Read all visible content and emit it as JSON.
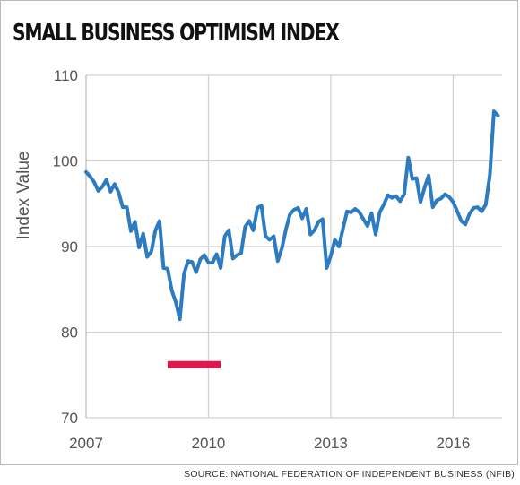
{
  "title": "SMALL BUSINESS OPTIMISM INDEX",
  "source": "SOURCE: NATIONAL FEDERATION OF INDEPENDENT BUSINESS (NFIB)",
  "colors": {
    "line": "#2d7bc0",
    "recession": "#e2174f",
    "grid": "#d2d2d2",
    "axis_text": "#555555"
  },
  "chart_data": {
    "type": "line",
    "title": "SMALL BUSINESS OPTIMISM INDEX",
    "xlabel": "",
    "ylabel": "Index Value",
    "xlim": [
      2007,
      2017.2
    ],
    "ylim": [
      70,
      110
    ],
    "x_ticks": [
      2007,
      2010,
      2013,
      2016
    ],
    "y_ticks": [
      70,
      80,
      90,
      100,
      110
    ],
    "grid": true,
    "recession_band": {
      "start": 2009.0,
      "end": 2010.3,
      "y": 76.2
    },
    "series": [
      {
        "x": [
          2007.0,
          2007.1,
          2007.2,
          2007.3,
          2007.4,
          2007.5,
          2007.6,
          2007.7,
          2007.8,
          2007.9,
          2008.0,
          2008.1,
          2008.2,
          2008.3,
          2008.4,
          2008.5,
          2008.6,
          2008.7,
          2008.8,
          2008.9,
          2009.0,
          2009.1,
          2009.2,
          2009.3,
          2009.4,
          2009.5,
          2009.6,
          2009.7,
          2009.8,
          2009.9,
          2010.0,
          2010.1,
          2010.2,
          2010.3,
          2010.4,
          2010.5,
          2010.6,
          2010.7,
          2010.8,
          2010.9,
          2011.0,
          2011.1,
          2011.2,
          2011.3,
          2011.4,
          2011.5,
          2011.6,
          2011.7,
          2011.8,
          2011.9,
          2012.0,
          2012.1,
          2012.2,
          2012.3,
          2012.4,
          2012.5,
          2012.6,
          2012.7,
          2012.8,
          2012.9,
          2013.0,
          2013.1,
          2013.2,
          2013.3,
          2013.4,
          2013.5,
          2013.6,
          2013.7,
          2013.8,
          2013.9,
          2014.0,
          2014.1,
          2014.2,
          2014.3,
          2014.4,
          2014.5,
          2014.6,
          2014.7,
          2014.8,
          2014.9,
          2015.0,
          2015.1,
          2015.2,
          2015.3,
          2015.4,
          2015.5,
          2015.6,
          2015.7,
          2015.8,
          2015.9,
          2016.0,
          2016.1,
          2016.2,
          2016.3,
          2016.4,
          2016.5,
          2016.6,
          2016.7,
          2016.8,
          2016.9,
          2017.0,
          2017.1
        ],
        "values": [
          98.7,
          98.2,
          97.5,
          96.5,
          97.0,
          97.8,
          96.4,
          97.3,
          96.3,
          94.6,
          94.6,
          91.8,
          92.9,
          89.9,
          91.5,
          88.8,
          89.4,
          91.9,
          93.0,
          87.5,
          87.4,
          84.9,
          83.5,
          81.5,
          86.8,
          88.3,
          88.2,
          87.0,
          88.5,
          89.0,
          88.1,
          88.1,
          89.1,
          87.5,
          91.2,
          91.9,
          88.6,
          89.0,
          89.2,
          92.3,
          93.0,
          91.9,
          94.5,
          94.8,
          91.2,
          90.8,
          91.2,
          88.3,
          89.8,
          92.0,
          93.8,
          94.3,
          94.5,
          93.3,
          94.4,
          91.4,
          91.9,
          92.9,
          93.2,
          87.5,
          88.9,
          90.8,
          90.0,
          92.1,
          94.1,
          94.0,
          94.4,
          94.0,
          93.2,
          92.4,
          93.9,
          91.4,
          94.0,
          94.9,
          96.0,
          95.7,
          95.9,
          95.3,
          96.1,
          100.4,
          97.9,
          98.0,
          95.2,
          96.9,
          98.3,
          94.6,
          95.4,
          95.6,
          96.1,
          95.8,
          95.2,
          94.1,
          93.0,
          92.6,
          93.8,
          94.5,
          94.6,
          94.1,
          94.9,
          98.4,
          105.8,
          105.3
        ]
      }
    ]
  }
}
